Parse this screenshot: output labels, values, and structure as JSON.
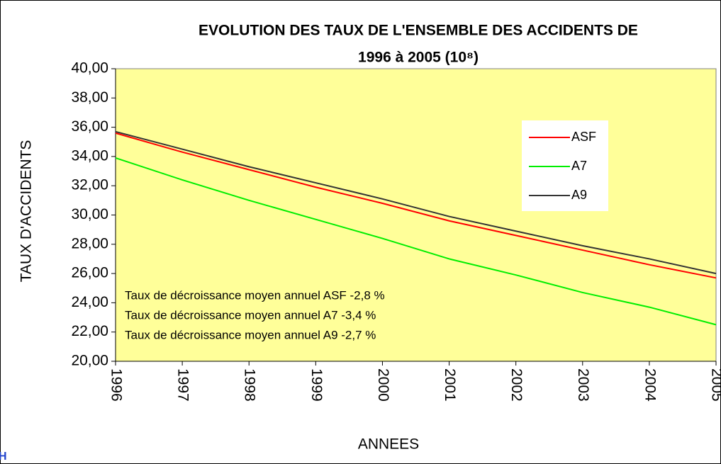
{
  "chart_data": {
    "type": "line",
    "title": "EVOLUTION DES TAUX DE L'ENSEMBLE DES ACCIDENTS DE",
    "subtitle": "1996 à 2005 (10⁸)",
    "x_label": "ANNEES",
    "y_label": "TAUX D'ACCIDENTS",
    "x": [
      1996,
      1997,
      1998,
      1999,
      2000,
      2001,
      2002,
      2003,
      2004,
      2005
    ],
    "xlim": [
      1996,
      2005
    ],
    "xticks": [
      1996,
      1997,
      1998,
      1999,
      2000,
      2001,
      2002,
      2003,
      2004,
      2005
    ],
    "ylim": [
      20,
      40
    ],
    "yticks": [
      {
        "value": 20,
        "label": "20,00"
      },
      {
        "value": 22,
        "label": "22,00"
      },
      {
        "value": 24,
        "label": "24,00"
      },
      {
        "value": 26,
        "label": "26,00"
      },
      {
        "value": 28,
        "label": "28,00"
      },
      {
        "value": 30,
        "label": "30,00"
      },
      {
        "value": 32,
        "label": "32,00"
      },
      {
        "value": 34,
        "label": "34,00"
      },
      {
        "value": 36,
        "label": "36,00"
      },
      {
        "value": 38,
        "label": "38,00"
      },
      {
        "value": 40,
        "label": "40,00"
      }
    ],
    "series": [
      {
        "name": "ASF",
        "color": "#ff0000",
        "values": [
          35.6,
          34.3,
          33.1,
          31.9,
          30.8,
          29.6,
          28.6,
          27.6,
          26.6,
          25.7
        ]
      },
      {
        "name": "A7",
        "color": "#00ee00",
        "values": [
          33.9,
          32.4,
          31.0,
          29.7,
          28.4,
          27.0,
          25.9,
          24.7,
          23.7,
          22.5
        ]
      },
      {
        "name": "A9",
        "color": "#333333",
        "values": [
          35.7,
          34.5,
          33.3,
          32.2,
          31.1,
          29.9,
          28.9,
          27.9,
          27.0,
          26.0
        ]
      }
    ],
    "annotations": [
      "Taux de décroissance moyen annuel ASF -2,8 %",
      "Taux de décroissance moyen annuel A7 -3,4 %",
      "Taux de décroissance moyen annuel A9 -2,7 %"
    ],
    "corner_text": "H",
    "legend": "upper right",
    "plot_background": "#ffff99"
  }
}
